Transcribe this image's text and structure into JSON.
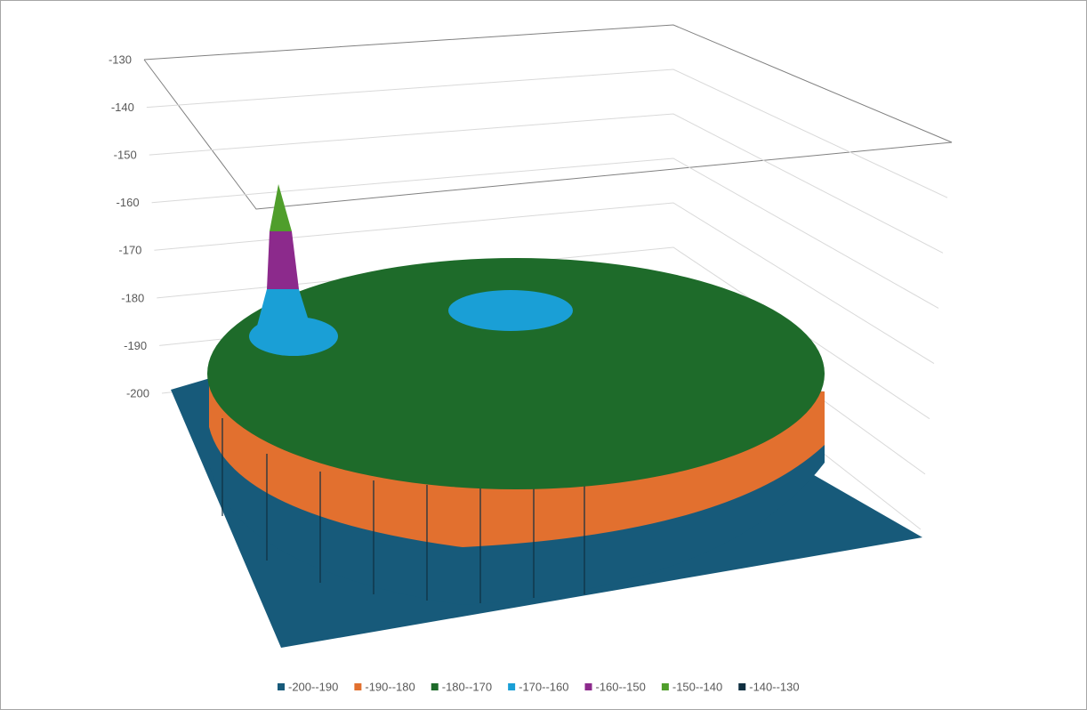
{
  "chart_data": {
    "type": "surface",
    "ylim": [
      -200,
      -130
    ],
    "yticks": [
      -130,
      -140,
      -150,
      -160,
      -170,
      -180,
      -190,
      -200
    ],
    "grid": true,
    "legend": "bottom",
    "series": [
      {
        "name": "-200--190",
        "color": "#175a7a"
      },
      {
        "name": "-190--180",
        "color": "#e2702f"
      },
      {
        "name": "-180--170",
        "color": "#1e6b2a"
      },
      {
        "name": "-170--160",
        "color": "#1a9fd6"
      },
      {
        "name": "-160--150",
        "color": "#8c2a8c"
      },
      {
        "name": "-150--140",
        "color": "#4f9e2b"
      },
      {
        "name": "-140--130",
        "color": "#0f2f40"
      }
    ]
  }
}
